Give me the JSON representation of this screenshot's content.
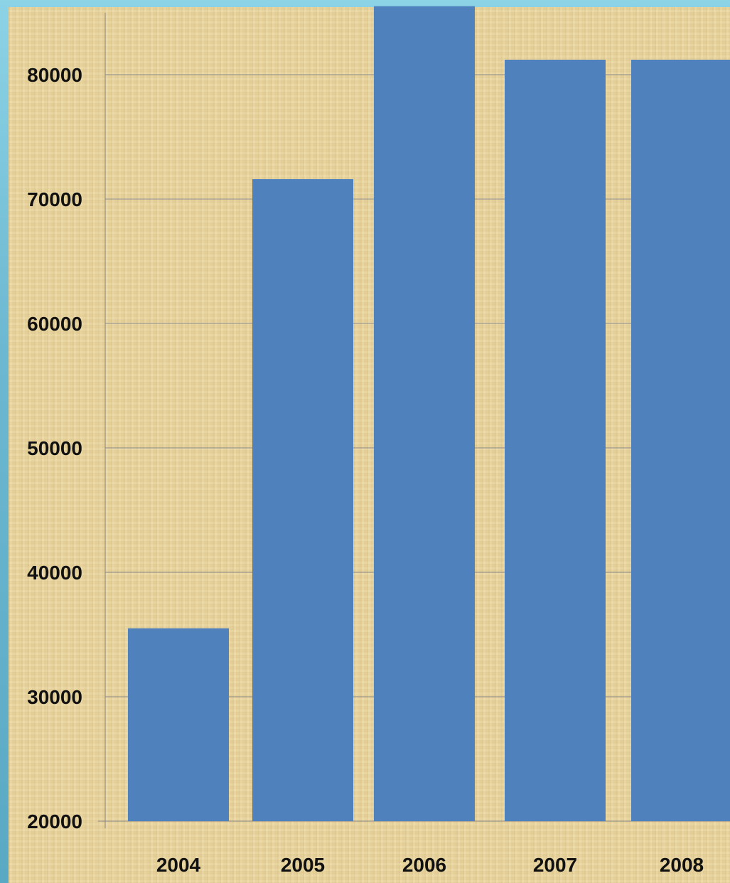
{
  "chart_data": {
    "type": "bar",
    "categories": [
      "2004",
      "2005",
      "2006",
      "2007",
      "2008"
    ],
    "values": [
      35500,
      71600,
      85500,
      81200,
      81200
    ],
    "ylim": [
      20000,
      85000
    ],
    "yticks": [
      20000,
      30000,
      40000,
      50000,
      60000,
      70000,
      80000
    ],
    "ytick_labels": [
      "20000",
      "30000",
      "40000",
      "50000",
      "60000",
      "70000",
      "80000"
    ],
    "title": "",
    "xlabel": "",
    "ylabel": "",
    "grid": true,
    "legend": "none",
    "bar_color": "#4f81bd",
    "gridline_color": "#8a8a8a"
  }
}
